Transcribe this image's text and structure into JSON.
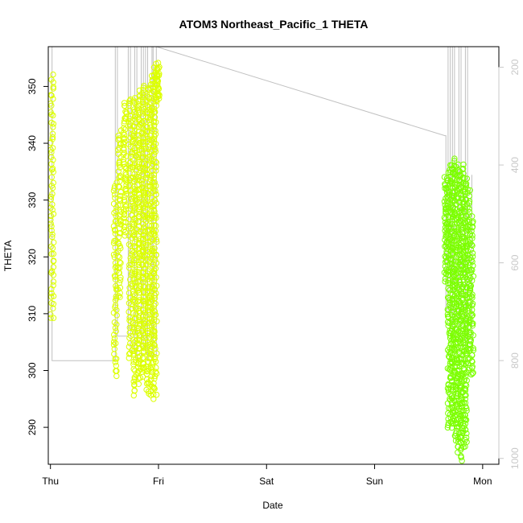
{
  "chart_data": {
    "type": "scatter",
    "title": "ATOM3 Northeast_Pacific_1 THETA",
    "xlabel": "Date",
    "ylabel": "THETA",
    "x_ticks": [
      "Thu",
      "Fri",
      "Sat",
      "Sun",
      "Mon"
    ],
    "xlim": [
      -0.02,
      4.15
    ],
    "y_ticks": [
      290,
      300,
      310,
      320,
      330,
      340,
      350
    ],
    "ylim": [
      283.5,
      357
    ],
    "y2_ticks": [
      200,
      400,
      600,
      800,
      1000
    ],
    "y2lim": [
      1012,
      158
    ],
    "y2_reversed": true,
    "grid": false,
    "colors": {
      "series_thu": "#dcff00",
      "series_mon": "#7cff00",
      "pressure_line": "#c0c0c0",
      "right_axis": "#c8c8c8"
    },
    "series": [
      {
        "color_key": "series_thu",
        "clusters": [
          {
            "x": 0.015,
            "ymin": 309,
            "ymax": 352,
            "n": 70
          },
          {
            "x": 0.6,
            "ymin": 299,
            "ymax": 333,
            "n": 60
          },
          {
            "x": 0.64,
            "ymin": 313,
            "ymax": 342,
            "n": 60
          },
          {
            "x": 0.69,
            "ymin": 324,
            "ymax": 347,
            "n": 60
          },
          {
            "x": 0.74,
            "ymin": 302,
            "ymax": 348,
            "n": 80
          },
          {
            "x": 0.78,
            "ymin": 296,
            "ymax": 348,
            "n": 120
          },
          {
            "x": 0.82,
            "ymin": 298,
            "ymax": 349,
            "n": 120
          },
          {
            "x": 0.86,
            "ymin": 299,
            "ymax": 350,
            "n": 120
          },
          {
            "x": 0.9,
            "ymin": 296,
            "ymax": 350,
            "n": 120
          },
          {
            "x": 0.94,
            "ymin": 295,
            "ymax": 352,
            "n": 120
          },
          {
            "x": 0.97,
            "ymin": 296,
            "ymax": 354,
            "n": 100
          },
          {
            "x": 0.995,
            "ymin": 347,
            "ymax": 354,
            "n": 30
          }
        ]
      },
      {
        "color_key": "series_mon",
        "clusters": [
          {
            "x": 3.66,
            "ymin": 316,
            "ymax": 334,
            "n": 60
          },
          {
            "x": 3.69,
            "ymin": 290,
            "ymax": 336,
            "n": 100
          },
          {
            "x": 3.72,
            "ymin": 290,
            "ymax": 336,
            "n": 120
          },
          {
            "x": 3.75,
            "ymin": 288,
            "ymax": 337,
            "n": 120
          },
          {
            "x": 3.78,
            "ymin": 286,
            "ymax": 336,
            "n": 120
          },
          {
            "x": 3.81,
            "ymin": 284,
            "ymax": 336,
            "n": 120
          },
          {
            "x": 3.84,
            "ymin": 287,
            "ymax": 334,
            "n": 120
          },
          {
            "x": 3.87,
            "ymin": 300,
            "ymax": 332,
            "n": 60
          },
          {
            "x": 3.9,
            "ymin": 299,
            "ymax": 327,
            "n": 60
          }
        ]
      }
    ],
    "pressure_line": {
      "color_key": "pressure_line",
      "points": [
        [
          0.0,
          100
        ],
        [
          0.015,
          100
        ],
        [
          0.015,
          800
        ],
        [
          0.02,
          800
        ],
        [
          0.6,
          800
        ],
        [
          0.6,
          100
        ],
        [
          0.62,
          100
        ],
        [
          0.62,
          750
        ],
        [
          0.72,
          750
        ],
        [
          0.72,
          100
        ],
        [
          0.74,
          100
        ],
        [
          0.74,
          780
        ],
        [
          0.78,
          780
        ],
        [
          0.78,
          100
        ],
        [
          0.8,
          100
        ],
        [
          0.8,
          800
        ],
        [
          0.84,
          800
        ],
        [
          0.84,
          100
        ],
        [
          0.86,
          100
        ],
        [
          0.86,
          780
        ],
        [
          0.88,
          780
        ],
        [
          0.88,
          100
        ],
        [
          0.9,
          100
        ],
        [
          0.9,
          800
        ],
        [
          0.94,
          800
        ],
        [
          0.94,
          100
        ],
        [
          0.95,
          100
        ],
        [
          0.95,
          790
        ],
        [
          0.98,
          790
        ],
        [
          0.98,
          158
        ],
        [
          3.65,
          340
        ],
        [
          3.66,
          340
        ],
        [
          3.66,
          700
        ],
        [
          3.68,
          700
        ],
        [
          3.68,
          100
        ],
        [
          3.7,
          100
        ],
        [
          3.7,
          740
        ],
        [
          3.72,
          740
        ],
        [
          3.72,
          100
        ],
        [
          3.74,
          100
        ],
        [
          3.74,
          760
        ],
        [
          3.78,
          760
        ],
        [
          3.78,
          100
        ],
        [
          3.8,
          100
        ],
        [
          3.8,
          770
        ],
        [
          3.84,
          770
        ],
        [
          3.84,
          100
        ],
        [
          3.86,
          100
        ],
        [
          3.86,
          780
        ],
        [
          3.9,
          780
        ],
        [
          3.9,
          420
        ]
      ]
    }
  }
}
